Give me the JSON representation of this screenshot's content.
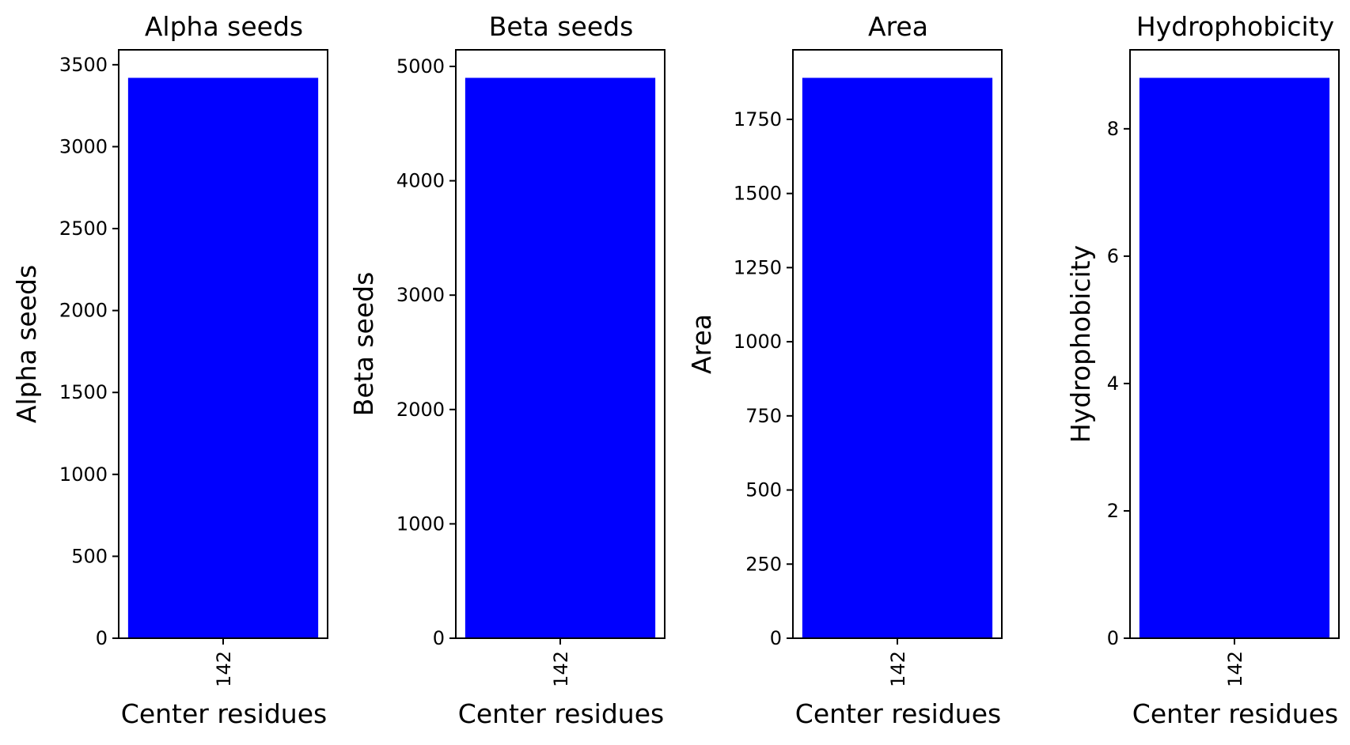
{
  "chart_data": [
    {
      "type": "bar",
      "title": "Alpha seeds",
      "xlabel": "Center residues",
      "ylabel": "Alpha seeds",
      "categories": [
        "142"
      ],
      "values": [
        3420
      ],
      "ylim": [
        0,
        3591
      ],
      "yticks": [
        0,
        500,
        1000,
        1500,
        2000,
        2500,
        3000,
        3500
      ],
      "bar_color": "#0000ff",
      "grid": false
    },
    {
      "type": "bar",
      "title": "Beta seeds",
      "xlabel": "Center residues",
      "ylabel": "Beta seeds",
      "categories": [
        "142"
      ],
      "values": [
        4900
      ],
      "ylim": [
        0,
        5145
      ],
      "yticks": [
        0,
        1000,
        2000,
        3000,
        4000,
        5000
      ],
      "bar_color": "#0000ff",
      "grid": false
    },
    {
      "type": "bar",
      "title": "Area",
      "xlabel": "Center residues",
      "ylabel": "Area",
      "categories": [
        "142"
      ],
      "values": [
        1890
      ],
      "ylim": [
        0,
        1984.5
      ],
      "yticks": [
        0,
        250,
        500,
        750,
        1000,
        1250,
        1500,
        1750
      ],
      "bar_color": "#0000ff",
      "grid": false
    },
    {
      "type": "bar",
      "title": "Hydrophobicity",
      "xlabel": "Center residues",
      "ylabel": "Hydrophobicity",
      "categories": [
        "142"
      ],
      "values": [
        8.8
      ],
      "ylim": [
        0,
        9.24
      ],
      "yticks": [
        0,
        2,
        4,
        6,
        8
      ],
      "bar_color": "#0000ff",
      "grid": false
    }
  ]
}
